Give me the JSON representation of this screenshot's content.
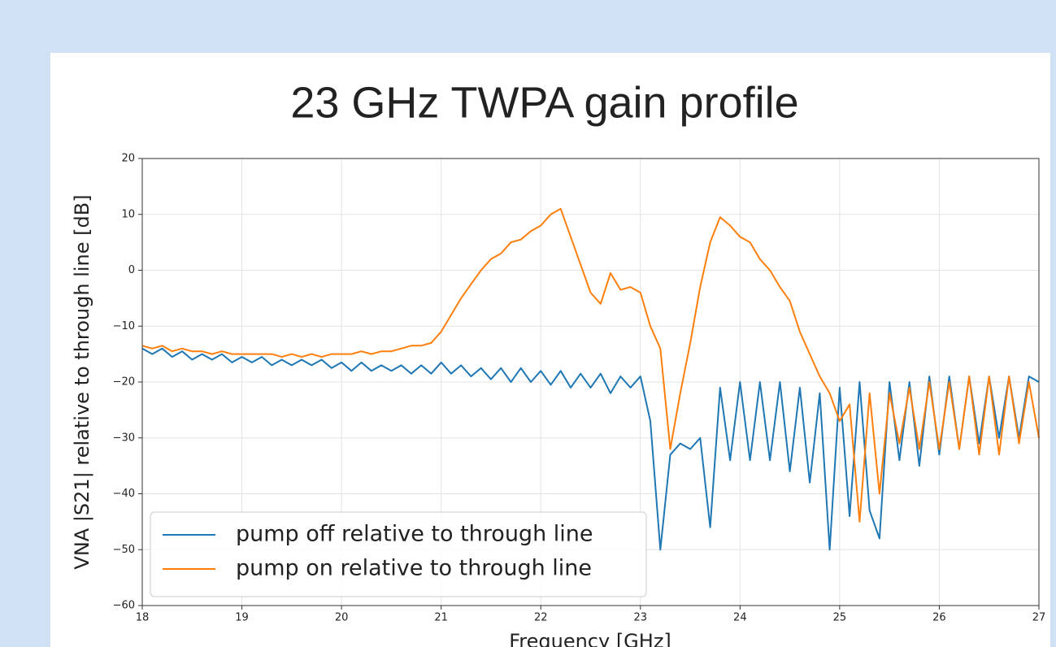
{
  "chart_data": {
    "type": "line",
    "title": "23 GHz TWPA gain profile",
    "xlabel": "Frequency [GHz]",
    "ylabel": "VNA |S21| relative to through line [dB]",
    "x": [
      18.0,
      18.1,
      18.2,
      18.3,
      18.4,
      18.5,
      18.6,
      18.7,
      18.8,
      18.9,
      19.0,
      19.1,
      19.2,
      19.3,
      19.4,
      19.5,
      19.6,
      19.7,
      19.8,
      19.9,
      20.0,
      20.1,
      20.2,
      20.3,
      20.4,
      20.5,
      20.6,
      20.7,
      20.8,
      20.9,
      21.0,
      21.1,
      21.2,
      21.3,
      21.4,
      21.5,
      21.6,
      21.7,
      21.8,
      21.9,
      22.0,
      22.1,
      22.2,
      22.3,
      22.4,
      22.5,
      22.6,
      22.7,
      22.8,
      22.9,
      23.0,
      23.1,
      23.2,
      23.3,
      23.4,
      23.5,
      23.6,
      23.7,
      23.8,
      23.9,
      24.0,
      24.1,
      24.2,
      24.3,
      24.4,
      24.5,
      24.6,
      24.7,
      24.8,
      24.9,
      25.0,
      25.1,
      25.2,
      25.3,
      25.4,
      25.5,
      25.6,
      25.7,
      25.8,
      25.9,
      26.0,
      26.1,
      26.2,
      26.3,
      26.4,
      26.5,
      26.6,
      26.7,
      26.8,
      26.9,
      27.0
    ],
    "series": [
      {
        "name": "pump off relative to through line",
        "color": "#1f77b4",
        "values": [
          -14,
          -15,
          -14,
          -15.5,
          -14.5,
          -16,
          -15,
          -16,
          -15,
          -16.5,
          -15.5,
          -16.5,
          -15.5,
          -17,
          -16,
          -17,
          -16,
          -17,
          -16,
          -17.5,
          -16.5,
          -18,
          -16.5,
          -18,
          -17,
          -18,
          -17,
          -18.5,
          -17,
          -18.5,
          -16.5,
          -18.5,
          -17,
          -19,
          -17.5,
          -19.5,
          -17.5,
          -20,
          -17.5,
          -20,
          -18,
          -20.5,
          -18,
          -21,
          -18.5,
          -21,
          -18.5,
          -22,
          -19,
          -21,
          -19,
          -27,
          -50,
          -33,
          -31,
          -32,
          -30,
          -46,
          -21,
          -34,
          -20,
          -34,
          -20,
          -34,
          -20,
          -36,
          -21,
          -38,
          -22,
          -50,
          -21,
          -44,
          -20,
          -43,
          -48,
          -20,
          -34,
          -20,
          -35,
          -19,
          -33,
          -19,
          -32,
          -19,
          -31,
          -19,
          -30,
          -19,
          -30,
          -19,
          -20
        ]
      },
      {
        "name": "pump on relative to through line",
        "color": "#ff7f0e",
        "values": [
          -13.5,
          -14,
          -13.5,
          -14.5,
          -14,
          -14.5,
          -14.5,
          -15,
          -14.5,
          -15,
          -15,
          -15,
          -15,
          -15,
          -15.5,
          -15,
          -15.5,
          -15,
          -15.5,
          -15,
          -15,
          -15,
          -14.5,
          -15,
          -14.5,
          -14.5,
          -14,
          -13.5,
          -13.5,
          -13,
          -11,
          -8,
          -5,
          -2.5,
          0,
          2,
          3,
          5,
          5.5,
          7,
          8,
          10,
          11,
          6,
          1,
          -4,
          -6,
          -0.5,
          -3.5,
          -3,
          -4,
          -10,
          -14,
          -32,
          -22,
          -13,
          -3,
          5,
          9.5,
          8,
          6,
          5,
          2,
          0,
          -3,
          -5.5,
          -11,
          -15,
          -19,
          -22,
          -27,
          -24,
          -45,
          -22,
          -40,
          -22,
          -31,
          -21,
          -32,
          -20,
          -32,
          -20,
          -32,
          -19,
          -33,
          -19,
          -33,
          -19,
          -31,
          -20,
          -30
        ]
      }
    ],
    "xlim": [
      18,
      27
    ],
    "ylim": [
      -60,
      20
    ],
    "xticks": [
      18,
      19,
      20,
      21,
      22,
      23,
      24,
      25,
      26,
      27
    ],
    "yticks": [
      {
        "value": -60,
        "label": "−60"
      },
      {
        "value": -50,
        "label": "−50"
      },
      {
        "value": -40,
        "label": "−40"
      },
      {
        "value": -30,
        "label": "−30"
      },
      {
        "value": -20,
        "label": "−20"
      },
      {
        "value": -10,
        "label": "−10"
      },
      0,
      10,
      20
    ],
    "grid": true,
    "legend": "lower left"
  }
}
